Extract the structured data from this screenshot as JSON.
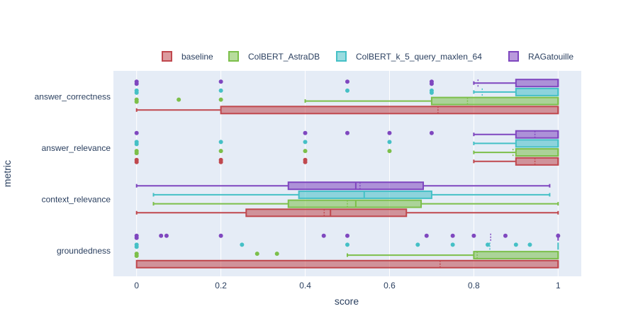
{
  "chart_data": {
    "type": "box",
    "orientation": "horizontal",
    "xlabel": "score",
    "ylabel": "metric",
    "xlim": [
      -0.055,
      1.055
    ],
    "x_ticks": [
      "0",
      "0.2",
      "0.4",
      "0.6",
      "0.8",
      "1"
    ],
    "x_tick_values": [
      0,
      0.2,
      0.4,
      0.6,
      0.8,
      1
    ],
    "categories": [
      "answer_correctness",
      "answer_relevance",
      "context_relevance",
      "groundedness"
    ],
    "legend_position": "top",
    "grid": true,
    "series": [
      {
        "name": "baseline",
        "color": "#c0484e",
        "boxes": [
          {
            "category": "answer_correctness",
            "whisker_low": 0,
            "q1": 0.2,
            "median": 1,
            "q3": 1,
            "whisker_high": 1,
            "mean": 0.715,
            "outliers": []
          },
          {
            "category": "answer_relevance",
            "whisker_low": 0.8,
            "q1": 0.9,
            "median": 1,
            "q3": 1,
            "whisker_high": 1,
            "mean": 0.945,
            "outliers": [
              0,
              0,
              0.2,
              0.2,
              0.4,
              0.4
            ]
          },
          {
            "category": "context_relevance",
            "whisker_low": 0,
            "q1": 0.26,
            "median": 0.46,
            "q3": 0.64,
            "whisker_high": 1,
            "mean": 0.445,
            "outliers": []
          },
          {
            "category": "groundedness",
            "whisker_low": 0,
            "q1": 0,
            "median": 1,
            "q3": 1,
            "whisker_high": 1,
            "mean": 0.72,
            "outliers": []
          }
        ]
      },
      {
        "name": "ColBERT_AstraDB",
        "color": "#7cbf4a",
        "boxes": [
          {
            "category": "answer_correctness",
            "whisker_low": 0.4,
            "q1": 0.7,
            "median": 1,
            "q3": 1,
            "whisker_high": 1,
            "mean": 0.785,
            "outliers": [
              0,
              0,
              0.1,
              0.2
            ]
          },
          {
            "category": "answer_relevance",
            "whisker_low": 0.8,
            "q1": 0.9,
            "median": 1,
            "q3": 1,
            "whisker_high": 1,
            "mean": 0.893,
            "outliers": [
              0,
              0,
              0.2,
              0.4,
              0.6
            ]
          },
          {
            "category": "context_relevance",
            "whisker_low": 0.04,
            "q1": 0.36,
            "median": 0.52,
            "q3": 0.675,
            "whisker_high": 1,
            "mean": 0.5,
            "outliers": []
          },
          {
            "category": "groundedness",
            "whisker_low": 0.5,
            "q1": 0.8,
            "median": 1,
            "q3": 1,
            "whisker_high": 1,
            "mean": 0.808,
            "outliers": [
              0,
              0,
              0.286,
              0.333
            ]
          }
        ]
      },
      {
        "name": "ColBERT_k_5_query_maxlen_64",
        "color": "#45c0c6",
        "boxes": [
          {
            "category": "answer_correctness",
            "whisker_low": 0.8,
            "q1": 0.9,
            "median": 1,
            "q3": 1,
            "whisker_high": 1,
            "mean": 0.82,
            "outliers": [
              0,
              0,
              0.2,
              0.5,
              0.7,
              0.7
            ]
          },
          {
            "category": "answer_relevance",
            "whisker_low": 0.8,
            "q1": 0.9,
            "median": 1,
            "q3": 1,
            "whisker_high": 1,
            "mean": 0.9,
            "outliers": [
              0,
              0,
              0.2,
              0.4,
              0.6
            ]
          },
          {
            "category": "context_relevance",
            "whisker_low": 0.04,
            "q1": 0.385,
            "median": 0.54,
            "q3": 0.7,
            "whisker_high": 0.98,
            "mean": 0.54,
            "outliers": []
          },
          {
            "category": "groundedness",
            "whisker_low": 1,
            "q1": 1,
            "median": 1,
            "q3": 1,
            "whisker_high": 1,
            "mean": 0.838,
            "outliers": [
              0,
              0,
              0.25,
              0.5,
              0.667,
              0.75,
              0.833,
              0.9,
              0.933
            ]
          }
        ]
      },
      {
        "name": "RAGatouille",
        "color": "#7f47bf",
        "boxes": [
          {
            "category": "answer_correctness",
            "whisker_low": 0.8,
            "q1": 0.9,
            "median": 1,
            "q3": 1,
            "whisker_high": 1,
            "mean": 0.81,
            "outliers": [
              0,
              0,
              0.2,
              0.5,
              0.7,
              0.7
            ]
          },
          {
            "category": "answer_relevance",
            "whisker_low": 0.8,
            "q1": 0.9,
            "median": 1,
            "q3": 1,
            "whisker_high": 1,
            "mean": 0.945,
            "outliers": [
              0,
              0.4,
              0.5,
              0.6,
              0.7
            ]
          },
          {
            "category": "context_relevance",
            "whisker_low": 0,
            "q1": 0.36,
            "median": 0.52,
            "q3": 0.68,
            "whisker_high": 0.98,
            "mean": 0.53,
            "outliers": []
          },
          {
            "category": "groundedness",
            "whisker_low": 1,
            "q1": 1,
            "median": 1,
            "q3": 1,
            "whisker_high": 1,
            "mean": 0.84,
            "outliers": [
              0,
              0,
              0.058,
              0.071,
              0.2,
              0.444,
              0.5,
              0.688,
              0.75,
              0.8,
              0.875,
              1
            ]
          }
        ]
      }
    ]
  }
}
